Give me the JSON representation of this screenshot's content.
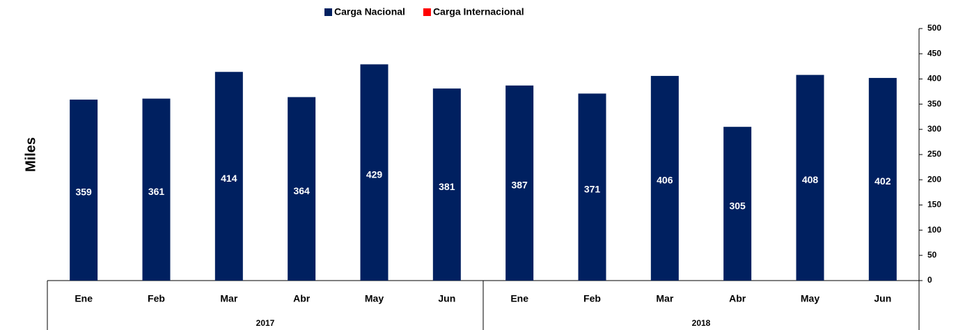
{
  "chart_data": {
    "type": "bar",
    "y_label": "Miles",
    "categories": [
      "Ene",
      "Feb",
      "Mar",
      "Abr",
      "May",
      "Jun",
      "Ene",
      "Feb",
      "Mar",
      "Abr",
      "May",
      "Jun"
    ],
    "groups": [
      "2017",
      "2018"
    ],
    "series": [
      {
        "name": "Carga Nacional",
        "color": "#002060",
        "values": [
          359,
          361,
          414,
          364,
          429,
          381,
          387,
          371,
          406,
          305,
          408,
          402
        ]
      },
      {
        "name": "Carga Internacional",
        "color": "#ff0000",
        "values": [
          null,
          null,
          null,
          null,
          null,
          null,
          null,
          null,
          null,
          null,
          null,
          null
        ]
      }
    ],
    "ylim": [
      0,
      500
    ],
    "yticks": [
      0,
      50,
      100,
      150,
      200,
      250,
      300,
      350,
      400,
      450,
      500
    ]
  }
}
